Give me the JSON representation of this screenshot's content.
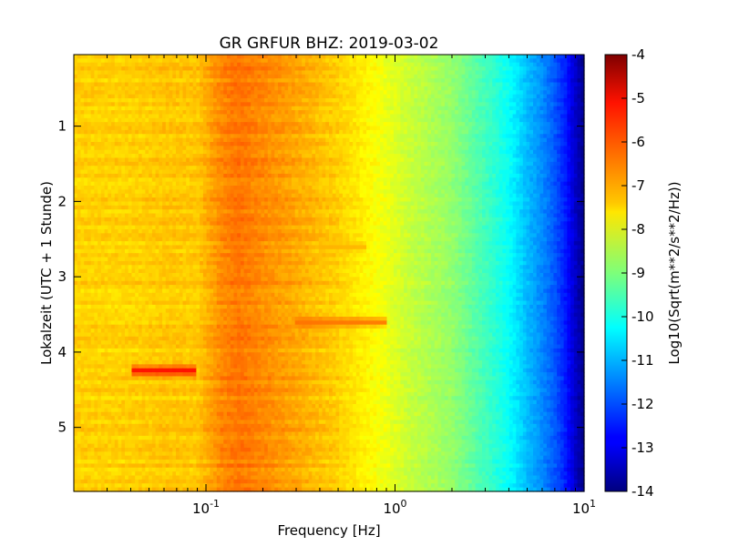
{
  "chart_data": {
    "type": "heatmap",
    "title": "GR GRFUR BHZ: 2019-03-02",
    "xlabel": "Frequency [Hz]",
    "ylabel": "Lokalzeit (UTC + 1 Stunde)",
    "x_scale": "log",
    "xlim": [
      0.02,
      10
    ],
    "ylim": [
      0.05,
      5.85
    ],
    "y_inverted": true,
    "x_ticks": [
      {
        "value": 0.1,
        "base": "10",
        "exp": "-1"
      },
      {
        "value": 1,
        "base": "10",
        "exp": "0"
      },
      {
        "value": 10,
        "base": "10",
        "exp": "1"
      }
    ],
    "y_ticks": [
      {
        "value": 1,
        "label": "1"
      },
      {
        "value": 2,
        "label": "2"
      },
      {
        "value": 3,
        "label": "3"
      },
      {
        "value": 4,
        "label": "4"
      },
      {
        "value": 5,
        "label": "5"
      }
    ],
    "colorbar": {
      "label": "Log10(Sqrt(m**2/s**2/Hz))",
      "colormap": "jet",
      "range": [
        -14,
        -4
      ],
      "ticks": [
        "-4",
        "-5",
        "-6",
        "-7",
        "-8",
        "-9",
        "-10",
        "-11",
        "-12",
        "-13",
        "-14"
      ]
    },
    "spectrum_profile": {
      "frequency_hz": [
        0.02,
        0.04,
        0.06,
        0.09,
        0.12,
        0.15,
        0.2,
        0.3,
        0.5,
        0.8,
        1.2,
        2,
        3,
        4,
        5,
        6,
        7,
        8,
        9,
        10
      ],
      "log10_amplitude": [
        -7.3,
        -7.3,
        -7.2,
        -7.2,
        -6.6,
        -6.4,
        -6.6,
        -6.9,
        -7.3,
        -7.8,
        -8.3,
        -8.8,
        -9.6,
        -10.2,
        -10.9,
        -11.4,
        -11.9,
        -12.5,
        -13.3,
        -13.9
      ]
    },
    "events": [
      {
        "time": 4.25,
        "fmin": 0.04,
        "fmax": 0.09,
        "log10_amplitude": -5.2
      },
      {
        "time": 3.6,
        "fmin": 0.3,
        "fmax": 0.9,
        "log10_amplitude": -6.3
      },
      {
        "time": 2.6,
        "fmin": 0.4,
        "fmax": 0.7,
        "log10_amplitude": -7.0
      }
    ]
  }
}
